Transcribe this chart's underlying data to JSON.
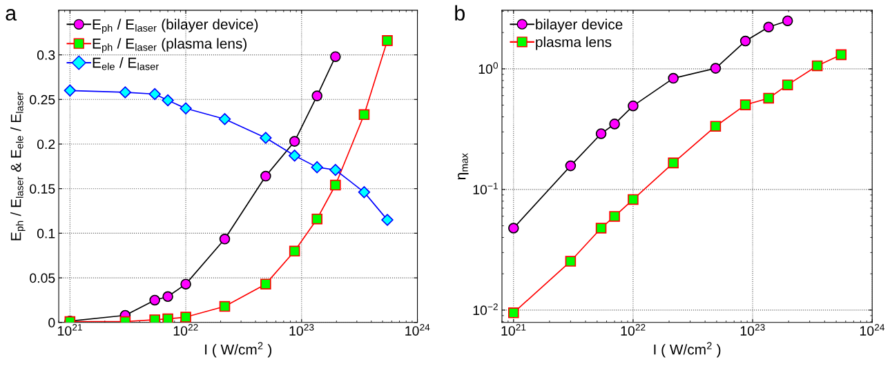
{
  "chart_data": [
    {
      "type": "line",
      "title": "a",
      "xlabel": "I ( W/cm$^{2}$ )",
      "ylabel": "E$_{ph}$ / E$_{laser}$ & E$_{ele}$ / E$_{laser}$",
      "log": "x",
      "xlim": [
        8e+20,
        1e+24
      ],
      "xticks": [
        {
          "value": 1e+21,
          "label": "10$^{21}$"
        },
        {
          "value": 1e+22,
          "label": "10$^{22}$"
        },
        {
          "value": 1e+23,
          "label": "10$^{23}$"
        },
        {
          "value": 1e+24,
          "label": "10$^{24}$"
        }
      ],
      "ylim": [
        0,
        0.35
      ],
      "yticks": [
        0,
        0.05,
        0.1,
        0.15,
        0.2,
        0.25,
        0.3
      ],
      "grid": true,
      "legend": "top left",
      "series": [
        {
          "name": "E$_{ph}$ / E$_{laser}$ (bilayer device)",
          "color": "#000000",
          "marker": "circle",
          "colors": [
            "#ff00ff",
            "#ff00ff",
            "#ff00ff",
            "#ff00ff",
            "#ff00ff",
            "#ff00ff",
            "#ff00ff",
            "#ff00ff",
            "#ff00ff",
            "#ff00ff"
          ],
          "x": [
            1e+21,
            3e+21,
            5.4e+21,
            7e+21,
            1e+22,
            2.17e+22,
            4.9e+22,
            8.7e+22,
            1.36e+23,
            1.96e+23
          ],
          "values": [
            0.0016,
            0.008,
            0.025,
            0.029,
            0.043,
            0.0935,
            0.164,
            0.203,
            0.254,
            0.298
          ]
        },
        {
          "name": "E$_{ph}$ / E$_{laser}$ (plasma lens)",
          "color": "#ff0000",
          "marker": "square",
          "colors": [
            "#00ff00",
            "#00ff00",
            "#00ff00",
            "#00ff00",
            "#00ff00",
            "#00ff00",
            "#00ff00",
            "#00ff00",
            "#00ff00",
            "#00ff00",
            "#00ff00",
            "#00ff00"
          ],
          "x": [
            1e+21,
            3e+21,
            5.4e+21,
            7e+21,
            1e+22,
            2.17e+22,
            4.9e+22,
            8.7e+22,
            1.36e+23,
            1.96e+23,
            3.47e+23,
            5.5e+23
          ],
          "values": [
            0.001,
            0.001,
            0.003,
            0.004,
            0.006,
            0.018,
            0.043,
            0.08,
            0.116,
            0.154,
            0.233,
            0.316
          ]
        },
        {
          "name": "E$_{ele}$ / E$_{laser}$",
          "color": "#0000ff",
          "marker": "diamond",
          "colors": [
            "#00ffff",
            "#00ffff",
            "#00ffff",
            "#00ffff",
            "#00ffff",
            "#00ffff",
            "#00ffff",
            "#00ffff",
            "#00ffff",
            "#00ffff",
            "#00ffff",
            "#00ffff"
          ],
          "x": [
            1e+21,
            3e+21,
            5.4e+21,
            7e+21,
            1e+22,
            2.17e+22,
            4.9e+22,
            8.7e+22,
            1.36e+23,
            1.96e+23,
            3.47e+23,
            5.5e+23
          ],
          "values": [
            0.26,
            0.258,
            0.256,
            0.249,
            0.24,
            0.228,
            0.207,
            0.187,
            0.174,
            0.171,
            0.146,
            0.115
          ]
        }
      ]
    },
    {
      "type": "line",
      "title": "b",
      "xlabel": "I ( W/cm$^{2}$ )",
      "ylabel": "η$_{max}$",
      "log": "xy",
      "xlim": [
        8e+20,
        1e+24
      ],
      "xticks": [
        {
          "value": 1e+21,
          "label": "10$^{21}$"
        },
        {
          "value": 1e+22,
          "label": "10$^{22}$"
        },
        {
          "value": 1e+23,
          "label": "10$^{23}$"
        },
        {
          "value": 1e+24,
          "label": "10$^{24}$"
        }
      ],
      "ylim": [
        0.0079,
        3.06
      ],
      "yticks": [
        {
          "value": 0.01,
          "label": "10$^{−2}$"
        },
        {
          "value": 0.1,
          "label": "10$^{−1}$"
        },
        {
          "value": 1,
          "label": "10$^{0}$"
        }
      ],
      "grid": true,
      "legend": "top left",
      "series": [
        {
          "name": "bilayer device",
          "color": "#000000",
          "marker": "circle",
          "colors": [
            "#ff00ff",
            "#ff00ff",
            "#ff00ff",
            "#ff00ff",
            "#ff00ff",
            "#ff00ff",
            "#ff00ff",
            "#ff00ff",
            "#ff00ff",
            "#ff00ff"
          ],
          "x": [
            1e+21,
            3e+21,
            5.4e+21,
            7e+21,
            1e+22,
            2.17e+22,
            4.9e+22,
            8.7e+22,
            1.36e+23,
            1.96e+23
          ],
          "values": [
            0.0478,
            0.157,
            0.29,
            0.349,
            0.493,
            0.835,
            1.01,
            1.7,
            2.22,
            2.5
          ]
        },
        {
          "name": "plasma lens",
          "color": "#ff0000",
          "marker": "square",
          "colors": [
            "#00ff00",
            "#00ff00",
            "#00ff00",
            "#00ff00",
            "#00ff00",
            "#00ff00",
            "#00ff00",
            "#00ff00",
            "#00ff00",
            "#00ff00",
            "#00ff00",
            "#00ff00"
          ],
          "x": [
            1e+21,
            3e+21,
            5.4e+21,
            7e+21,
            1e+22,
            2.17e+22,
            4.9e+22,
            8.7e+22,
            1.36e+23,
            1.96e+23,
            3.47e+23,
            5.5e+23
          ],
          "values": [
            0.0095,
            0.0254,
            0.0478,
            0.0598,
            0.0826,
            0.166,
            0.334,
            0.503,
            0.571,
            0.736,
            1.06,
            1.31
          ]
        }
      ]
    }
  ]
}
